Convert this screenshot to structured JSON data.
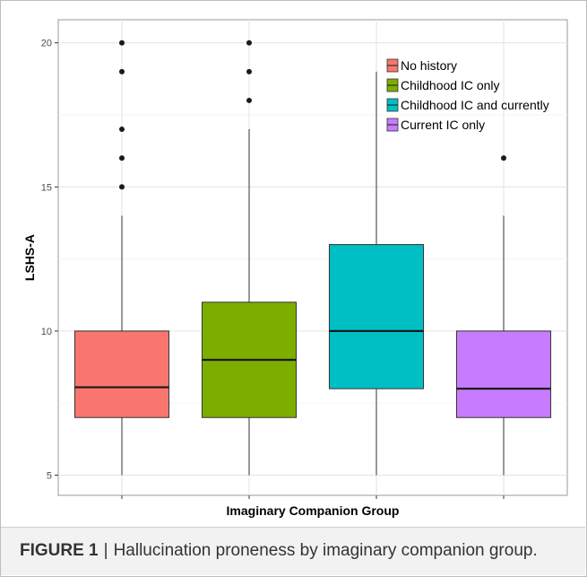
{
  "figure": {
    "caption_label": "FIGURE 1",
    "caption_text": "Hallucination proneness by imaginary companion group."
  },
  "chart_data": {
    "type": "box",
    "title": "",
    "xlabel": "Imaginary Companion Group",
    "ylabel": "LSHS-A",
    "ylim": [
      4.3,
      20.8
    ],
    "yticks": [
      5,
      10,
      15,
      20
    ],
    "grid": true,
    "legend_position": "top-right",
    "series": [
      {
        "name": "No history",
        "color": "#F8766D",
        "whisker_low": 5,
        "q1": 7,
        "median": 8.05,
        "q3": 10,
        "whisker_high": 14,
        "outliers": [
          15,
          16,
          17,
          19,
          20
        ]
      },
      {
        "name": "Childhood IC only",
        "color": "#7CAE00",
        "whisker_low": 5,
        "q1": 7,
        "median": 9,
        "q3": 11,
        "whisker_high": 17,
        "outliers": [
          18,
          19,
          20
        ]
      },
      {
        "name": "Childhood IC and currently",
        "color": "#00BFC4",
        "whisker_low": 5,
        "q1": 8,
        "median": 10,
        "q3": 13,
        "whisker_high": 19,
        "outliers": []
      },
      {
        "name": "Current IC only",
        "color": "#C77CFF",
        "whisker_low": 5,
        "q1": 7,
        "median": 8,
        "q3": 10,
        "whisker_high": 14,
        "outliers": [
          16
        ]
      }
    ]
  }
}
